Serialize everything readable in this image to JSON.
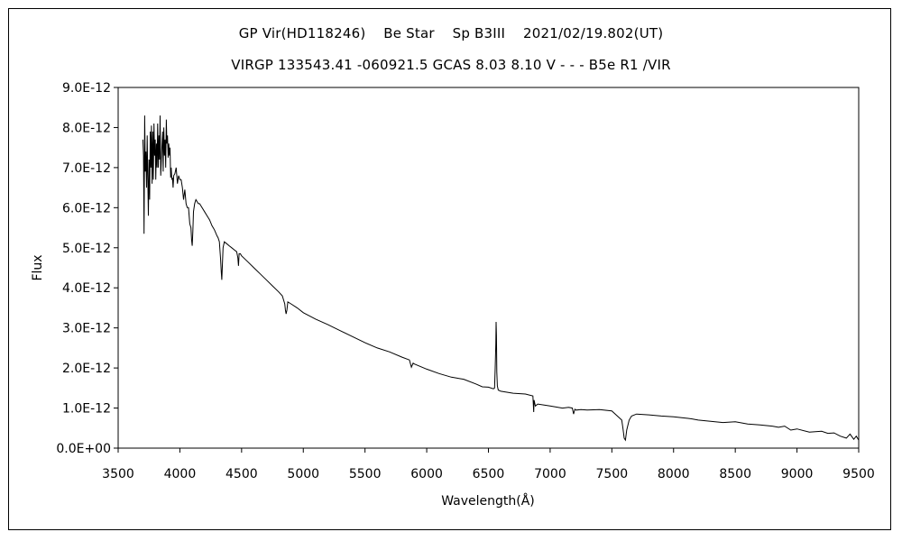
{
  "chart_data": {
    "type": "line",
    "title": "GP Vir(HD118246)    Be Star    Sp B3III    2021/02/19.802(UT)",
    "subtitle": "VIRGP 133543.41 -060921.5 GCAS 8.03 8.10 V - - - B5e R1 /VIR",
    "xlabel": "Wavelength(Å)",
    "ylabel": "Flux",
    "xlim": [
      3500,
      9500
    ],
    "ylim": [
      0,
      9e-12
    ],
    "xticks": [
      3500,
      4000,
      4500,
      5000,
      5500,
      6000,
      6500,
      7000,
      7500,
      8000,
      8500,
      9000,
      9500
    ],
    "xtick_labels": [
      "3500",
      "4000",
      "4500",
      "5000",
      "5500",
      "6000",
      "6500",
      "7000",
      "7500",
      "8000",
      "8500",
      "9000",
      "9500"
    ],
    "yticks": [
      0,
      1e-12,
      2e-12,
      3e-12,
      4e-12,
      5e-12,
      6e-12,
      7e-12,
      8e-12,
      9e-12
    ],
    "ytick_labels": [
      "0.0E+00",
      "1.0E-12",
      "2.0E-12",
      "3.0E-12",
      "4.0E-12",
      "5.0E-12",
      "6.0E-12",
      "7.0E-12",
      "8.0E-12",
      "9.0E-12"
    ],
    "grid": false,
    "legend": "none",
    "line_color": "#000000",
    "series": [
      {
        "x": [
          3700,
          3705,
          3710,
          3715,
          3720,
          3725,
          3730,
          3735,
          3740,
          3745,
          3750,
          3755,
          3760,
          3765,
          3770,
          3775,
          3780,
          3785,
          3790,
          3795,
          3800,
          3805,
          3810,
          3815,
          3820,
          3825,
          3830,
          3835,
          3840,
          3845,
          3850,
          3855,
          3860,
          3865,
          3870,
          3875,
          3880,
          3885,
          3890,
          3895,
          3900,
          3905,
          3910,
          3915,
          3920,
          3925,
          3930,
          3935,
          3940,
          3945,
          3950,
          3960,
          3970,
          3980,
          3990,
          4000,
          4010,
          4020,
          4030,
          4040,
          4050,
          4060,
          4070,
          4080,
          4090,
          4095,
          4100,
          4105,
          4110,
          4120,
          4130,
          4140,
          4150,
          4160,
          4180,
          4200,
          4220,
          4240,
          4260,
          4280,
          4300,
          4310,
          4320,
          4330,
          4335,
          4340,
          4345,
          4350,
          4360,
          4380,
          4400,
          4420,
          4440,
          4460,
          4470,
          4475,
          4480,
          4490,
          4500,
          4550,
          4600,
          4650,
          4700,
          4750,
          4800,
          4830,
          4850,
          4855,
          4861,
          4867,
          4875,
          4900,
          4950,
          5000,
          5100,
          5200,
          5300,
          5400,
          5500,
          5600,
          5700,
          5800,
          5860,
          5876,
          5890,
          5900,
          6000,
          6100,
          6200,
          6300,
          6400,
          6450,
          6500,
          6540,
          6550,
          6555,
          6560,
          6562,
          6565,
          6568,
          6572,
          6580,
          6600,
          6700,
          6800,
          6860,
          6867,
          6870,
          6880,
          6900,
          7000,
          7100,
          7150,
          7180,
          7190,
          7200,
          7210,
          7250,
          7300,
          7400,
          7500,
          7580,
          7590,
          7600,
          7610,
          7620,
          7640,
          7660,
          7700,
          7800,
          7900,
          8000,
          8100,
          8150,
          8200,
          8300,
          8400,
          8500,
          8600,
          8700,
          8800,
          8850,
          8900,
          8950,
          9000,
          9100,
          9200,
          9250,
          9300,
          9350,
          9400,
          9430,
          9460,
          9480,
          9500
        ],
        "y": [
          7.7e-12,
          7.3e-12,
          5.35e-12,
          8.3e-12,
          6.9e-12,
          7.4e-12,
          6.5e-12,
          7.8e-12,
          6.8e-12,
          5.8e-12,
          7.2e-12,
          6.2e-12,
          7.9e-12,
          7e-12,
          8.05e-12,
          6.6e-12,
          7.9e-12,
          6.7e-12,
          8.1e-12,
          7.3e-12,
          7.7e-12,
          6.7e-12,
          7.6e-12,
          7e-12,
          8.1e-12,
          7e-12,
          7.8e-12,
          7.2e-12,
          8.3e-12,
          6.8e-12,
          7.2e-12,
          7.55e-12,
          7.9e-12,
          6.9e-12,
          8e-12,
          7.3e-12,
          7.7e-12,
          7e-12,
          8.2e-12,
          7.6e-12,
          7.8e-12,
          7.25e-12,
          7.6e-12,
          7.3e-12,
          7.5e-12,
          6.75e-12,
          7e-12,
          6.7e-12,
          6.75e-12,
          6.5e-12,
          6.8e-12,
          6.85e-12,
          7e-12,
          6.6e-12,
          6.8e-12,
          6.7e-12,
          6.7e-12,
          6.5e-12,
          6.2e-12,
          6.45e-12,
          6.1e-12,
          6e-12,
          6e-12,
          5.6e-12,
          5.5e-12,
          5.2e-12,
          5.05e-12,
          5.4e-12,
          5.9e-12,
          6.1e-12,
          6.2e-12,
          6.15e-12,
          6.1e-12,
          6.1e-12,
          6e-12,
          5.9e-12,
          5.8e-12,
          5.7e-12,
          5.55e-12,
          5.45e-12,
          5.3e-12,
          5.25e-12,
          5.15e-12,
          4.7e-12,
          4.4e-12,
          4.2e-12,
          4.6e-12,
          5e-12,
          5.15e-12,
          5.1e-12,
          5.05e-12,
          5e-12,
          4.95e-12,
          4.9e-12,
          4.75e-12,
          4.55e-12,
          4.85e-12,
          4.85e-12,
          4.8e-12,
          4.65e-12,
          4.5e-12,
          4.35e-12,
          4.2e-12,
          4.05e-12,
          3.9e-12,
          3.8e-12,
          3.6e-12,
          3.45e-12,
          3.35e-12,
          3.45e-12,
          3.65e-12,
          3.6e-12,
          3.5e-12,
          3.38e-12,
          3.22e-12,
          3.08e-12,
          2.93e-12,
          2.78e-12,
          2.63e-12,
          2.5e-12,
          2.4e-12,
          2.27e-12,
          2.2e-12,
          2.02e-12,
          2.12e-12,
          2.1e-12,
          1.97e-12,
          1.86e-12,
          1.77e-12,
          1.72e-12,
          1.6e-12,
          1.53e-12,
          1.52e-12,
          1.48e-12,
          1.5e-12,
          2e-12,
          2.6e-12,
          3.15e-12,
          2.8e-12,
          1.9e-12,
          1.55e-12,
          1.45e-12,
          1.42e-12,
          1.37e-12,
          1.35e-12,
          1.3e-12,
          9e-13,
          1.2e-12,
          1.05e-12,
          1.1e-12,
          1.05e-12,
          1e-12,
          1.02e-12,
          1e-12,
          8.5e-13,
          9.7e-13,
          9.5e-13,
          9.6e-13,
          9.5e-13,
          9.6e-13,
          9.3e-13,
          7e-13,
          5e-13,
          2.5e-13,
          2e-13,
          4.5e-13,
          7e-13,
          8e-13,
          8.5e-13,
          8.3e-13,
          8e-13,
          7.8e-13,
          7.5e-13,
          7.3e-13,
          7e-13,
          6.7e-13,
          6.4e-13,
          6.6e-13,
          6e-13,
          5.8e-13,
          5.5e-13,
          5.2e-13,
          5.5e-13,
          4.5e-13,
          4.8e-13,
          4e-13,
          4.2e-13,
          3.7e-13,
          3.8e-13,
          3e-13,
          2.5e-13,
          3.5e-13,
          2.2e-13,
          3e-13,
          2e-13
        ]
      }
    ]
  }
}
